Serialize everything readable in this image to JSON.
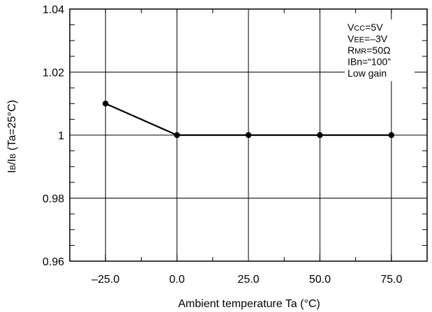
{
  "chart_data": {
    "type": "line",
    "xlabel": "Ambient temperature Ta (°C)",
    "ylabel": {
      "main1": "I",
      "sub1": "B",
      "main2": "/I",
      "sub2": "B",
      "rest": " (Ta=25°C)"
    },
    "xlim": [
      -37.5,
      87.5
    ],
    "ylim": [
      0.96,
      1.04
    ],
    "x_ticks": [
      -25,
      0,
      25,
      50,
      75
    ],
    "x_tick_labels": [
      "–25.0",
      "0.0",
      "25.0",
      "50.0",
      "75.0"
    ],
    "y_ticks": [
      0.96,
      0.98,
      1,
      1.02,
      1.04
    ],
    "y_tick_labels": [
      "0.96",
      "0.98",
      "1",
      "1.02",
      "1.04"
    ],
    "grid": true,
    "series": [
      {
        "x": [
          -25,
          0,
          25,
          50,
          75
        ],
        "y": [
          1.01,
          1.0,
          1.0,
          1.0,
          1.0
        ]
      }
    ],
    "annotations": [
      {
        "main": "V",
        "sub": "CC",
        "rest": "=5V"
      },
      {
        "main": "V",
        "sub": "EE",
        "rest": "=–3V"
      },
      {
        "main": "R",
        "sub": "MR",
        "rest": "=50Ω"
      },
      {
        "main": "IBn=“100”",
        "sub": "",
        "rest": ""
      },
      {
        "main": "Low gain",
        "sub": "",
        "rest": ""
      }
    ],
    "annotation_placement": "top-right"
  }
}
